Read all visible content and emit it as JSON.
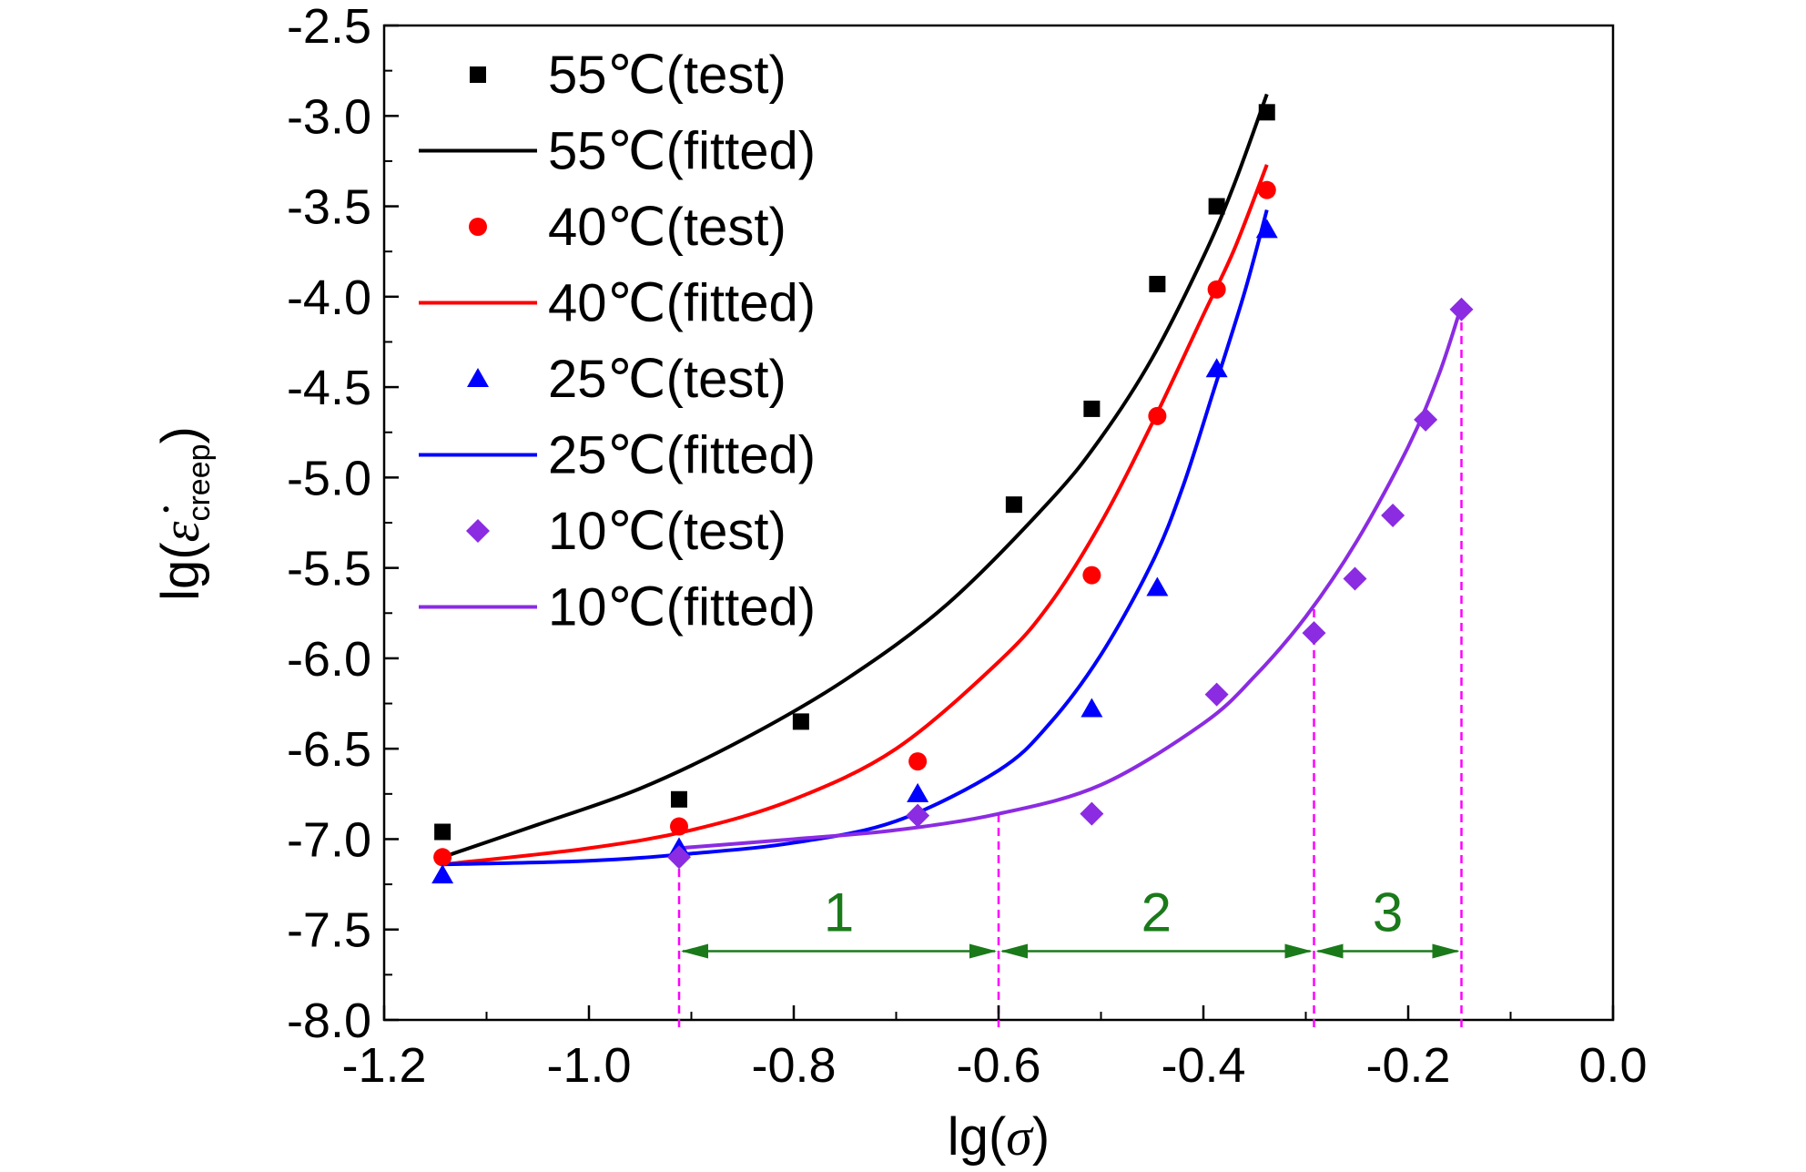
{
  "chart_data": {
    "type": "scatter",
    "xlabel_prefix": "lg(",
    "xlabel_symbol": "σ",
    "xlabel_suffix": ")",
    "ylabel_prefix": "lg(",
    "ylabel_symbol": "ε̇",
    "ylabel_subscript": "creep",
    "ylabel_suffix": ")",
    "xlim": [
      -1.2,
      0.0
    ],
    "ylim": [
      -8.0,
      -2.5
    ],
    "x_ticks": [
      -1.2,
      -1.0,
      -0.8,
      -0.6,
      -0.4,
      -0.2,
      0.0
    ],
    "x_tick_labels": [
      "-1.2",
      "-1.0",
      "-0.8",
      "-0.6",
      "-0.4",
      "-0.2",
      "0.0"
    ],
    "y_ticks": [
      -8.0,
      -7.5,
      -7.0,
      -6.5,
      -6.0,
      -5.5,
      -5.0,
      -4.5,
      -4.0,
      -3.5,
      -3.0,
      -2.5
    ],
    "y_tick_labels": [
      "-8.0",
      "-7.5",
      "-7.0",
      "-6.5",
      "-6.0",
      "-5.5",
      "-5.0",
      "-4.5",
      "-4.0",
      "-3.5",
      "-3.0",
      "-2.5"
    ],
    "legend_position": "top-left",
    "grid": false,
    "series": [
      {
        "name": "55℃(test)",
        "kind": "scatter",
        "marker": "square",
        "color": "#000000",
        "x": [
          -1.143,
          -0.912,
          -0.793,
          -0.585,
          -0.509,
          -0.445,
          -0.387,
          -0.338
        ],
        "y": [
          -6.96,
          -6.78,
          -6.35,
          -5.15,
          -4.62,
          -3.93,
          -3.5,
          -2.98
        ]
      },
      {
        "name": "55℃(fitted)",
        "kind": "line",
        "color": "#000000",
        "x": [
          -1.143,
          -1.05,
          -0.95,
          -0.85,
          -0.75,
          -0.65,
          -0.55,
          -0.5,
          -0.45,
          -0.4,
          -0.37,
          -0.338
        ],
        "y": [
          -7.1,
          -6.92,
          -6.72,
          -6.45,
          -6.12,
          -5.7,
          -5.13,
          -4.78,
          -4.34,
          -3.78,
          -3.38,
          -2.88
        ]
      },
      {
        "name": "40℃(test)",
        "kind": "scatter",
        "marker": "circle",
        "color": "#ff0000",
        "x": [
          -1.143,
          -0.912,
          -0.679,
          -0.509,
          -0.445,
          -0.387,
          -0.338
        ],
        "y": [
          -7.1,
          -6.93,
          -6.57,
          -5.54,
          -4.66,
          -3.96,
          -3.41
        ]
      },
      {
        "name": "40℃(fitted)",
        "kind": "line",
        "color": "#ff0000",
        "x": [
          -1.143,
          -1.0,
          -0.9,
          -0.8,
          -0.7,
          -0.6,
          -0.55,
          -0.5,
          -0.45,
          -0.4,
          -0.37,
          -0.338
        ],
        "y": [
          -7.14,
          -7.05,
          -6.95,
          -6.78,
          -6.5,
          -6.02,
          -5.7,
          -5.25,
          -4.7,
          -4.1,
          -3.74,
          -3.27
        ]
      },
      {
        "name": "25℃(test)",
        "kind": "scatter",
        "marker": "triangle",
        "color": "#0000ff",
        "x": [
          -1.143,
          -0.912,
          -0.679,
          -0.509,
          -0.445,
          -0.387,
          -0.338
        ],
        "y": [
          -7.2,
          -7.05,
          -6.75,
          -6.28,
          -5.61,
          -4.4,
          -3.63
        ]
      },
      {
        "name": "25℃(fitted)",
        "kind": "line",
        "color": "#0000ff",
        "x": [
          -1.143,
          -1.0,
          -0.9,
          -0.8,
          -0.7,
          -0.6,
          -0.55,
          -0.5,
          -0.45,
          -0.42,
          -0.39,
          -0.36,
          -0.338
        ],
        "y": [
          -7.14,
          -7.12,
          -7.08,
          -7.02,
          -6.9,
          -6.62,
          -6.36,
          -5.98,
          -5.47,
          -5.05,
          -4.52,
          -3.98,
          -3.52
        ]
      },
      {
        "name": "10℃(test)",
        "kind": "scatter",
        "marker": "diamond",
        "color": "#8b2be2",
        "x": [
          -0.912,
          -0.679,
          -0.509,
          -0.387,
          -0.292,
          -0.252,
          -0.215,
          -0.183,
          -0.148
        ],
        "y": [
          -7.1,
          -6.87,
          -6.86,
          -6.2,
          -5.86,
          -5.56,
          -5.21,
          -4.68,
          -4.07
        ]
      },
      {
        "name": "10℃(fitted)",
        "kind": "line",
        "color": "#8b2be2",
        "x": [
          -0.912,
          -0.8,
          -0.7,
          -0.6,
          -0.5,
          -0.4,
          -0.35,
          -0.3,
          -0.25,
          -0.2,
          -0.17,
          -0.148
        ],
        "y": [
          -7.05,
          -7.0,
          -6.95,
          -6.86,
          -6.7,
          -6.36,
          -6.1,
          -5.77,
          -5.35,
          -4.83,
          -4.43,
          -4.05
        ]
      }
    ],
    "reference_lines": {
      "color": "#ff00ff",
      "style": "dashed",
      "x": [
        -0.912,
        -0.6,
        -0.292,
        -0.148
      ]
    },
    "regions": [
      {
        "label": "1",
        "from": -0.912,
        "to": -0.6,
        "color": "#1a7a1a"
      },
      {
        "label": "2",
        "from": -0.6,
        "to": -0.292,
        "color": "#1a7a1a"
      },
      {
        "label": "3",
        "from": -0.292,
        "to": -0.148,
        "color": "#1a7a1a"
      }
    ],
    "region_arrow_y": -7.62
  }
}
